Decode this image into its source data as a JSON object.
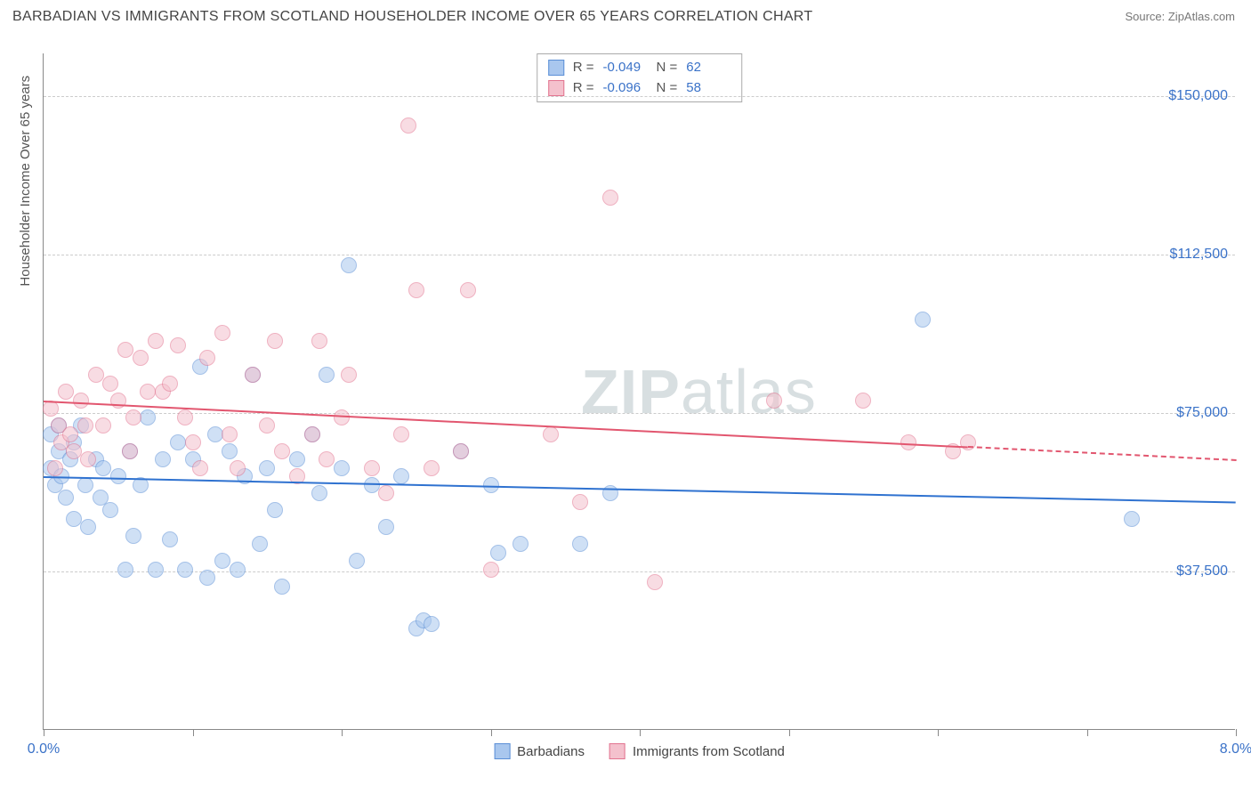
{
  "title": "BARBADIAN VS IMMIGRANTS FROM SCOTLAND HOUSEHOLDER INCOME OVER 65 YEARS CORRELATION CHART",
  "source": "Source: ZipAtlas.com",
  "watermark_a": "ZIP",
  "watermark_b": "atlas",
  "y_axis_title": "Householder Income Over 65 years",
  "chart": {
    "type": "scatter",
    "background_color": "#ffffff",
    "grid_color": "#cccccc",
    "axis_color": "#888888",
    "xlim": [
      0,
      8
    ],
    "ylim": [
      0,
      160000
    ],
    "x_ticks": [
      0,
      1,
      2,
      3,
      4,
      5,
      6,
      7,
      8
    ],
    "x_tick_labels": {
      "0": "0.0%",
      "8": "8.0%"
    },
    "y_gridlines": [
      37500,
      75000,
      112500,
      150000
    ],
    "y_tick_labels": [
      "$37,500",
      "$75,000",
      "$112,500",
      "$150,000"
    ],
    "marker_radius": 9,
    "marker_opacity": 0.55,
    "series": [
      {
        "name": "Barbadians",
        "fill": "#a9c7ee",
        "stroke": "#5b8fd6",
        "R": "-0.049",
        "N": "62",
        "trend": {
          "color": "#2f72d0",
          "y_at_x0": 60000,
          "y_at_x8": 54000,
          "solid_until_x": 8.0
        },
        "points": [
          [
            0.05,
            62000
          ],
          [
            0.05,
            70000
          ],
          [
            0.08,
            58000
          ],
          [
            0.1,
            66000
          ],
          [
            0.1,
            72000
          ],
          [
            0.12,
            60000
          ],
          [
            0.15,
            55000
          ],
          [
            0.18,
            64000
          ],
          [
            0.2,
            50000
          ],
          [
            0.2,
            68000
          ],
          [
            0.25,
            72000
          ],
          [
            0.28,
            58000
          ],
          [
            0.3,
            48000
          ],
          [
            0.35,
            64000
          ],
          [
            0.38,
            55000
          ],
          [
            0.4,
            62000
          ],
          [
            0.45,
            52000
          ],
          [
            0.5,
            60000
          ],
          [
            0.55,
            38000
          ],
          [
            0.58,
            66000
          ],
          [
            0.6,
            46000
          ],
          [
            0.65,
            58000
          ],
          [
            0.7,
            74000
          ],
          [
            0.75,
            38000
          ],
          [
            0.8,
            64000
          ],
          [
            0.85,
            45000
          ],
          [
            0.9,
            68000
          ],
          [
            0.95,
            38000
          ],
          [
            1.0,
            64000
          ],
          [
            1.05,
            86000
          ],
          [
            1.1,
            36000
          ],
          [
            1.15,
            70000
          ],
          [
            1.2,
            40000
          ],
          [
            1.25,
            66000
          ],
          [
            1.3,
            38000
          ],
          [
            1.35,
            60000
          ],
          [
            1.4,
            84000
          ],
          [
            1.45,
            44000
          ],
          [
            1.5,
            62000
          ],
          [
            1.55,
            52000
          ],
          [
            1.6,
            34000
          ],
          [
            1.7,
            64000
          ],
          [
            1.8,
            70000
          ],
          [
            1.85,
            56000
          ],
          [
            1.9,
            84000
          ],
          [
            2.0,
            62000
          ],
          [
            2.05,
            110000
          ],
          [
            2.1,
            40000
          ],
          [
            2.2,
            58000
          ],
          [
            2.3,
            48000
          ],
          [
            2.4,
            60000
          ],
          [
            2.5,
            24000
          ],
          [
            2.55,
            26000
          ],
          [
            2.6,
            25000
          ],
          [
            2.8,
            66000
          ],
          [
            3.0,
            58000
          ],
          [
            3.05,
            42000
          ],
          [
            3.2,
            44000
          ],
          [
            3.6,
            44000
          ],
          [
            3.8,
            56000
          ],
          [
            5.9,
            97000
          ],
          [
            7.3,
            50000
          ]
        ]
      },
      {
        "name": "Immigrants from Scotland",
        "fill": "#f4c1cd",
        "stroke": "#e2738f",
        "R": "-0.096",
        "N": "58",
        "trend": {
          "color": "#e2566f",
          "y_at_x0": 78000,
          "y_at_x8": 64000,
          "solid_until_x": 6.2
        },
        "points": [
          [
            0.05,
            76000
          ],
          [
            0.08,
            62000
          ],
          [
            0.1,
            72000
          ],
          [
            0.12,
            68000
          ],
          [
            0.15,
            80000
          ],
          [
            0.18,
            70000
          ],
          [
            0.2,
            66000
          ],
          [
            0.25,
            78000
          ],
          [
            0.28,
            72000
          ],
          [
            0.3,
            64000
          ],
          [
            0.35,
            84000
          ],
          [
            0.4,
            72000
          ],
          [
            0.45,
            82000
          ],
          [
            0.5,
            78000
          ],
          [
            0.55,
            90000
          ],
          [
            0.58,
            66000
          ],
          [
            0.6,
            74000
          ],
          [
            0.65,
            88000
          ],
          [
            0.7,
            80000
          ],
          [
            0.75,
            92000
          ],
          [
            0.8,
            80000
          ],
          [
            0.85,
            82000
          ],
          [
            0.9,
            91000
          ],
          [
            0.95,
            74000
          ],
          [
            1.0,
            68000
          ],
          [
            1.05,
            62000
          ],
          [
            1.1,
            88000
          ],
          [
            1.2,
            94000
          ],
          [
            1.25,
            70000
          ],
          [
            1.3,
            62000
          ],
          [
            1.4,
            84000
          ],
          [
            1.5,
            72000
          ],
          [
            1.55,
            92000
          ],
          [
            1.6,
            66000
          ],
          [
            1.7,
            60000
          ],
          [
            1.8,
            70000
          ],
          [
            1.85,
            92000
          ],
          [
            1.9,
            64000
          ],
          [
            2.0,
            74000
          ],
          [
            2.05,
            84000
          ],
          [
            2.2,
            62000
          ],
          [
            2.3,
            56000
          ],
          [
            2.4,
            70000
          ],
          [
            2.45,
            143000
          ],
          [
            2.5,
            104000
          ],
          [
            2.6,
            62000
          ],
          [
            2.85,
            104000
          ],
          [
            2.8,
            66000
          ],
          [
            3.0,
            38000
          ],
          [
            3.4,
            70000
          ],
          [
            3.6,
            54000
          ],
          [
            3.8,
            126000
          ],
          [
            4.1,
            35000
          ],
          [
            4.9,
            78000
          ],
          [
            5.5,
            78000
          ],
          [
            5.8,
            68000
          ],
          [
            6.1,
            66000
          ],
          [
            6.2,
            68000
          ]
        ]
      }
    ]
  },
  "stats_labels": {
    "R": "R =",
    "N": "N ="
  },
  "legend_title_fontsize": 15,
  "title_fontsize": 16
}
